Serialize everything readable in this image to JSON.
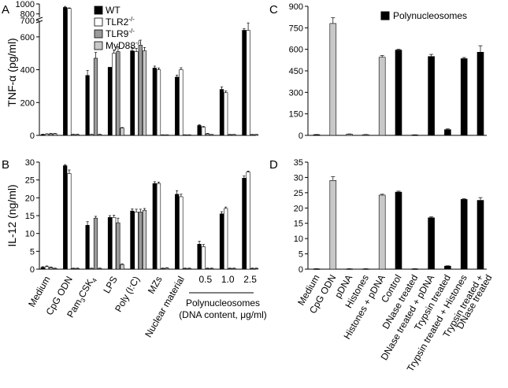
{
  "colors": {
    "WT": "#000000",
    "TLR2": "#ffffff",
    "TLR9": "#9a9a9a",
    "MyD88": "#c8c8c8",
    "Polynucleosomes": "#000000"
  },
  "chart_data": [
    {
      "panel": "A",
      "type": "bar",
      "ylabel": "TNF-α (pg/ml)",
      "axis_break": {
        "lower_ylim": [
          0,
          700
        ],
        "upper_ylim": [
          700,
          1000
        ],
        "lower_ticks": [
          "0",
          "200",
          "400",
          "600"
        ],
        "upper_ticks": [
          "700",
          "800",
          "1000"
        ]
      },
      "categories": [
        "Medium",
        "CpG ODN",
        "Pam3CSK4",
        "LPS",
        "Poly (I:C)",
        "MZs",
        "Nuclear material",
        "0.5",
        "1.0",
        "2.5"
      ],
      "group_label": "Polynucleosomes",
      "group_sublabel": "(DNA content, μg/ml)",
      "series": [
        {
          "name": "WT",
          "values": [
            5,
            930,
            365,
            415,
            515,
            410,
            355,
            60,
            280,
            640
          ],
          "errors": [
            2,
            20,
            30,
            0,
            20,
            12,
            12,
            5,
            15,
            10
          ]
        },
        {
          "name": "TLR2-/-",
          "values": [
            8,
            910,
            5,
            500,
            510,
            400,
            400,
            50,
            260,
            640
          ],
          "errors": [
            2,
            10,
            2,
            20,
            20,
            10,
            12,
            4,
            10,
            45
          ]
        },
        {
          "name": "TLR9-/-",
          "values": [
            10,
            5,
            470,
            510,
            550,
            3,
            3,
            10,
            5,
            5
          ],
          "errors": [
            2,
            2,
            35,
            30,
            30,
            1,
            1,
            2,
            1,
            1
          ]
        },
        {
          "name": "MyD88-/-",
          "values": [
            10,
            5,
            5,
            45,
            515,
            3,
            3,
            5,
            5,
            5
          ],
          "errors": [
            2,
            2,
            2,
            3,
            20,
            1,
            1,
            1,
            1,
            1
          ]
        }
      ]
    },
    {
      "panel": "B",
      "type": "bar",
      "ylabel": "IL-12 (ng/ml)",
      "ylim": [
        0,
        30
      ],
      "yticks": [
        "0",
        "5",
        "10",
        "15",
        "20",
        "25",
        "30"
      ],
      "categories": [
        "Medium",
        "CpG ODN",
        "Pam3CSK4",
        "LPS",
        "Poly (I:C)",
        "MZs",
        "Nuclear material",
        "0.5",
        "1.0",
        "2.5"
      ],
      "series": [
        {
          "name": "WT",
          "values": [
            0.5,
            29,
            12.3,
            14.5,
            16.3,
            24,
            21,
            7,
            15.5,
            25.5
          ],
          "errors": [
            0.2,
            0.3,
            1,
            0.5,
            0.6,
            0.5,
            1,
            0.8,
            0.6,
            0.6
          ]
        },
        {
          "name": "TLR2-/-",
          "values": [
            0.7,
            26.8,
            0.2,
            14.5,
            16,
            24,
            20.3,
            6.3,
            17,
            27.2
          ],
          "errors": [
            0.2,
            1,
            0.1,
            0.6,
            0.8,
            0.4,
            0.7,
            0.6,
            0.4,
            0.3
          ]
        },
        {
          "name": "TLR9-/-",
          "values": [
            0.5,
            0.2,
            14.3,
            13,
            16,
            0.2,
            0.2,
            0.2,
            0.2,
            0.2
          ],
          "errors": [
            0.1,
            0.1,
            0.5,
            1.3,
            0.8,
            0.1,
            0.1,
            0.1,
            0.1,
            0.1
          ]
        },
        {
          "name": "MyD88-/-",
          "values": [
            0.2,
            0.2,
            0.2,
            1.3,
            16.5,
            0.3,
            0.2,
            0.2,
            0.2,
            0.2
          ],
          "errors": [
            0.1,
            0.1,
            0.1,
            0.2,
            0.5,
            0.1,
            0.1,
            0.1,
            0.1,
            0.1
          ]
        }
      ]
    },
    {
      "panel": "C",
      "type": "bar",
      "ylim": [
        0,
        900
      ],
      "yticks": [
        "0",
        "150",
        "300",
        "450",
        "600",
        "750",
        "900"
      ],
      "legend": "Polynucleosomes",
      "categories": [
        "Medium",
        "CpG ODN",
        "pDNA",
        "Histones",
        "Histones + pDNA",
        "Control",
        "DNase treated",
        "DNase treated + pDNA",
        "Trypsin treated",
        "Trypsin treated + Histones",
        "Trypsin treated + DNase treated"
      ],
      "values": [
        5,
        780,
        8,
        5,
        545,
        595,
        3,
        550,
        40,
        535,
        580
      ],
      "errors": [
        1,
        40,
        2,
        1,
        12,
        5,
        1,
        15,
        5,
        8,
        45
      ],
      "bar_kind": [
        "polynuc",
        "control",
        "control",
        "control",
        "control",
        "polynuc",
        "polynuc",
        "polynuc",
        "polynuc",
        "polynuc",
        "polynuc"
      ]
    },
    {
      "panel": "D",
      "type": "bar",
      "ylim": [
        0,
        35
      ],
      "yticks": [
        "0",
        "5",
        "10",
        "15",
        "20",
        "25",
        "30",
        "35"
      ],
      "categories": [
        "Medium",
        "CpG ODN",
        "pDNA",
        "Histones",
        "Histones + pDNA",
        "Control",
        "DNase treated",
        "DNase treated + pDNA",
        "Trypsin treated",
        "Trypsin treated + Histones",
        "Trypsin treated + DNase treated"
      ],
      "values": [
        0.1,
        29,
        0.1,
        0.1,
        24.2,
        25.2,
        0.1,
        16.8,
        1,
        22.8,
        22.5
      ],
      "errors": [
        0.05,
        1.2,
        0.05,
        0.05,
        0.3,
        0.3,
        0.05,
        0.3,
        0.1,
        0.2,
        0.9
      ],
      "bar_kind": [
        "polynuc",
        "control",
        "control",
        "control",
        "control",
        "polynuc",
        "polynuc",
        "polynuc",
        "polynuc",
        "polynuc",
        "polynuc"
      ]
    }
  ],
  "legend_labels": {
    "WT": "WT",
    "TLR2": "TLR2",
    "TLR9": "TLR9",
    "MyD88": "MyD88",
    "sup": "-/-"
  },
  "panel_letters": [
    "A",
    "B",
    "C",
    "D"
  ]
}
